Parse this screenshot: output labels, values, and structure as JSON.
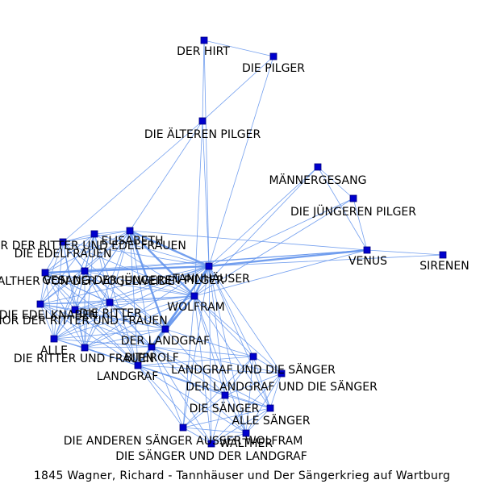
{
  "caption": "1845 Wagner, Richard - Tannhäuser und Der Sängerkrieg auf Wartburg",
  "colors": {
    "edge": "#6495ed",
    "node": "#0000cd",
    "label": "#000000"
  },
  "nodes": [
    {
      "id": "hirt",
      "label": "DER HIRT"
    },
    {
      "id": "pilger",
      "label": "DIE PILGER"
    },
    {
      "id": "aelteren",
      "label": "DIE ÄLTEREN PILGER"
    },
    {
      "id": "maenner",
      "label": "MÄNNERGESANG"
    },
    {
      "id": "juengeren",
      "label": "DIE JÜNGEREN PILGER"
    },
    {
      "id": "venus",
      "label": "VENUS"
    },
    {
      "id": "sirenen",
      "label": "SIRENEN"
    },
    {
      "id": "chorrf",
      "label": "CHOR DER RITTER UND EDELFRAUEN"
    },
    {
      "id": "elisabeth",
      "label": "ELISABETH"
    },
    {
      "id": "edelfrauen",
      "label": "DIE EDELFRAUEN"
    },
    {
      "id": "walther_v",
      "label": "WALTHER VON DER VOGELWEIDE"
    },
    {
      "id": "gesang",
      "label": "GESANG DER JÜNGEREN PILGER"
    },
    {
      "id": "tannhaeuser",
      "label": "TANNHÄUSER"
    },
    {
      "id": "wolfram",
      "label": "WOLFRAM"
    },
    {
      "id": "edelknaben",
      "label": "DIE EDELKNABEN"
    },
    {
      "id": "ritter",
      "label": "DIE RITTER"
    },
    {
      "id": "chorrf2",
      "label": "CHOR DER RITTER UND FRAUEN"
    },
    {
      "id": "landgraf_d",
      "label": "DER LANDGRAF"
    },
    {
      "id": "alle",
      "label": "ALLE"
    },
    {
      "id": "ritterfrauen",
      "label": "DIE RITTER UND FRAUEN"
    },
    {
      "id": "biterolf",
      "label": "BITEROLF"
    },
    {
      "id": "landgraf",
      "label": "LANDGRAF"
    },
    {
      "id": "landgraf_saenger",
      "label": "LANDGRAF UND DIE SÄNGER"
    },
    {
      "id": "der_landgraf_saenger",
      "label": "DER LANDGRAF UND DIE SÄNGER"
    },
    {
      "id": "saenger",
      "label": "DIE SÄNGER"
    },
    {
      "id": "alle_saenger",
      "label": "ALLE SÄNGER"
    },
    {
      "id": "andere_saenger",
      "label": "DIE ANDEREN SÄNGER AUSSER WOLFRAM"
    },
    {
      "id": "walther",
      "label": "WALTHER"
    },
    {
      "id": "saenger_landgraf",
      "label": "DIE SÄNGER UND DER LANDGRAF"
    }
  ],
  "edges": [
    [
      "hirt",
      "pilger"
    ],
    [
      "hirt",
      "aelteren"
    ],
    [
      "hirt",
      "tannhaeuser"
    ],
    [
      "pilger",
      "aelteren"
    ],
    [
      "pilger",
      "tannhaeuser"
    ],
    [
      "aelteren",
      "tannhaeuser"
    ],
    [
      "aelteren",
      "wolfram"
    ],
    [
      "aelteren",
      "elisabeth"
    ],
    [
      "aelteren",
      "chorrf"
    ],
    [
      "maenner",
      "juengeren"
    ],
    [
      "maenner",
      "venus"
    ],
    [
      "maenner",
      "tannhaeuser"
    ],
    [
      "maenner",
      "wolfram"
    ],
    [
      "juengeren",
      "venus"
    ],
    [
      "juengeren",
      "tannhaeuser"
    ],
    [
      "juengeren",
      "wolfram"
    ],
    [
      "venus",
      "sirenen"
    ],
    [
      "venus",
      "tannhaeuser"
    ],
    [
      "venus",
      "wolfram"
    ],
    [
      "venus",
      "gesang"
    ],
    [
      "venus",
      "elisabeth"
    ],
    [
      "venus",
      "walther_v"
    ],
    [
      "sirenen",
      "tannhaeuser"
    ],
    [
      "tannhaeuser",
      "wolfram"
    ],
    [
      "tannhaeuser",
      "elisabeth"
    ],
    [
      "tannhaeuser",
      "chorrf"
    ],
    [
      "tannhaeuser",
      "edelfrauen"
    ],
    [
      "tannhaeuser",
      "walther_v"
    ],
    [
      "tannhaeuser",
      "gesang"
    ],
    [
      "tannhaeuser",
      "edelknaben"
    ],
    [
      "tannhaeuser",
      "ritter"
    ],
    [
      "tannhaeuser",
      "chorrf2"
    ],
    [
      "tannhaeuser",
      "landgraf_d"
    ],
    [
      "tannhaeuser",
      "alle"
    ],
    [
      "tannhaeuser",
      "ritterfrauen"
    ],
    [
      "tannhaeuser",
      "biterolf"
    ],
    [
      "tannhaeuser",
      "landgraf"
    ],
    [
      "tannhaeuser",
      "landgraf_saenger"
    ],
    [
      "tannhaeuser",
      "der_landgraf_saenger"
    ],
    [
      "tannhaeuser",
      "saenger"
    ],
    [
      "tannhaeuser",
      "alle_saenger"
    ],
    [
      "tannhaeuser",
      "andere_saenger"
    ],
    [
      "tannhaeuser",
      "walther"
    ],
    [
      "tannhaeuser",
      "saenger_landgraf"
    ],
    [
      "wolfram",
      "elisabeth"
    ],
    [
      "wolfram",
      "chorrf"
    ],
    [
      "wolfram",
      "edelfrauen"
    ],
    [
      "wolfram",
      "walther_v"
    ],
    [
      "wolfram",
      "gesang"
    ],
    [
      "wolfram",
      "edelknaben"
    ],
    [
      "wolfram",
      "ritter"
    ],
    [
      "wolfram",
      "chorrf2"
    ],
    [
      "wolfram",
      "landgraf_d"
    ],
    [
      "wolfram",
      "alle"
    ],
    [
      "wolfram",
      "ritterfrauen"
    ],
    [
      "wolfram",
      "biterolf"
    ],
    [
      "wolfram",
      "landgraf"
    ],
    [
      "wolfram",
      "landgraf_saenger"
    ],
    [
      "wolfram",
      "der_landgraf_saenger"
    ],
    [
      "wolfram",
      "saenger"
    ],
    [
      "wolfram",
      "alle_saenger"
    ],
    [
      "wolfram",
      "andere_saenger"
    ],
    [
      "wolfram",
      "walther"
    ],
    [
      "wolfram",
      "saenger_landgraf"
    ],
    [
      "elisabeth",
      "chorrf"
    ],
    [
      "elisabeth",
      "edelfrauen"
    ],
    [
      "elisabeth",
      "walther_v"
    ],
    [
      "elisabeth",
      "gesang"
    ],
    [
      "elisabeth",
      "edelknaben"
    ],
    [
      "elisabeth",
      "ritter"
    ],
    [
      "elisabeth",
      "chorrf2"
    ],
    [
      "elisabeth",
      "landgraf_d"
    ],
    [
      "elisabeth",
      "alle"
    ],
    [
      "elisabeth",
      "ritterfrauen"
    ],
    [
      "elisabeth",
      "biterolf"
    ],
    [
      "elisabeth",
      "landgraf"
    ],
    [
      "chorrf",
      "edelfrauen"
    ],
    [
      "chorrf",
      "walther_v"
    ],
    [
      "chorrf",
      "gesang"
    ],
    [
      "chorrf",
      "edelknaben"
    ],
    [
      "chorrf",
      "ritter"
    ],
    [
      "chorrf",
      "chorrf2"
    ],
    [
      "chorrf",
      "landgraf_d"
    ],
    [
      "chorrf",
      "alle"
    ],
    [
      "chorrf",
      "ritterfrauen"
    ],
    [
      "edelfrauen",
      "walther_v"
    ],
    [
      "edelfrauen",
      "gesang"
    ],
    [
      "edelfrauen",
      "edelknaben"
    ],
    [
      "edelfrauen",
      "ritter"
    ],
    [
      "edelfrauen",
      "chorrf2"
    ],
    [
      "edelfrauen",
      "alle"
    ],
    [
      "edelfrauen",
      "ritterfrauen"
    ],
    [
      "edelfrauen",
      "landgraf"
    ],
    [
      "walther_v",
      "gesang"
    ],
    [
      "walther_v",
      "edelknaben"
    ],
    [
      "walther_v",
      "ritter"
    ],
    [
      "walther_v",
      "chorrf2"
    ],
    [
      "walther_v",
      "landgraf_d"
    ],
    [
      "walther_v",
      "alle"
    ],
    [
      "walther_v",
      "ritterfrauen"
    ],
    [
      "walther_v",
      "biterolf"
    ],
    [
      "walther_v",
      "landgraf"
    ],
    [
      "gesang",
      "edelknaben"
    ],
    [
      "gesang",
      "ritter"
    ],
    [
      "gesang",
      "chorrf2"
    ],
    [
      "gesang",
      "landgraf_d"
    ],
    [
      "gesang",
      "alle"
    ],
    [
      "gesang",
      "ritterfrauen"
    ],
    [
      "gesang",
      "biterolf"
    ],
    [
      "gesang",
      "landgraf"
    ],
    [
      "edelknaben",
      "ritter"
    ],
    [
      "edelknaben",
      "chorrf2"
    ],
    [
      "edelknaben",
      "landgraf_d"
    ],
    [
      "edelknaben",
      "alle"
    ],
    [
      "edelknaben",
      "ritterfrauen"
    ],
    [
      "edelknaben",
      "biterolf"
    ],
    [
      "edelknaben",
      "landgraf"
    ],
    [
      "ritter",
      "chorrf2"
    ],
    [
      "ritter",
      "landgraf_d"
    ],
    [
      "ritter",
      "alle"
    ],
    [
      "ritter",
      "ritterfrauen"
    ],
    [
      "ritter",
      "biterolf"
    ],
    [
      "ritter",
      "landgraf"
    ],
    [
      "chorrf2",
      "landgraf_d"
    ],
    [
      "chorrf2",
      "alle"
    ],
    [
      "chorrf2",
      "ritterfrauen"
    ],
    [
      "chorrf2",
      "biterolf"
    ],
    [
      "chorrf2",
      "landgraf"
    ],
    [
      "landgraf_d",
      "alle"
    ],
    [
      "landgraf_d",
      "ritterfrauen"
    ],
    [
      "landgraf_d",
      "biterolf"
    ],
    [
      "landgraf_d",
      "landgraf"
    ],
    [
      "landgraf_d",
      "landgraf_saenger"
    ],
    [
      "landgraf_d",
      "saenger"
    ],
    [
      "alle",
      "ritterfrauen"
    ],
    [
      "alle",
      "biterolf"
    ],
    [
      "alle",
      "landgraf"
    ],
    [
      "ritterfrauen",
      "biterolf"
    ],
    [
      "ritterfrauen",
      "landgraf"
    ],
    [
      "ritterfrauen",
      "saenger"
    ],
    [
      "biterolf",
      "landgraf"
    ],
    [
      "biterolf",
      "landgraf_saenger"
    ],
    [
      "biterolf",
      "der_landgraf_saenger"
    ],
    [
      "biterolf",
      "saenger"
    ],
    [
      "biterolf",
      "alle_saenger"
    ],
    [
      "biterolf",
      "andere_saenger"
    ],
    [
      "biterolf",
      "walther"
    ],
    [
      "biterolf",
      "saenger_landgraf"
    ],
    [
      "landgraf",
      "landgraf_saenger"
    ],
    [
      "landgraf",
      "der_landgraf_saenger"
    ],
    [
      "landgraf",
      "saenger"
    ],
    [
      "landgraf",
      "alle_saenger"
    ],
    [
      "landgraf",
      "andere_saenger"
    ],
    [
      "landgraf",
      "walther"
    ],
    [
      "landgraf",
      "saenger_landgraf"
    ],
    [
      "landgraf_saenger",
      "der_landgraf_saenger"
    ],
    [
      "landgraf_saenger",
      "saenger"
    ],
    [
      "landgraf_saenger",
      "alle_saenger"
    ],
    [
      "landgraf_saenger",
      "walther"
    ],
    [
      "landgraf_saenger",
      "andere_saenger"
    ],
    [
      "der_landgraf_saenger",
      "saenger"
    ],
    [
      "der_landgraf_saenger",
      "alle_saenger"
    ],
    [
      "der_landgraf_saenger",
      "walther"
    ],
    [
      "der_landgraf_saenger",
      "saenger_landgraf"
    ],
    [
      "saenger",
      "alle_saenger"
    ],
    [
      "saenger",
      "andere_saenger"
    ],
    [
      "saenger",
      "walther"
    ],
    [
      "saenger",
      "saenger_landgraf"
    ],
    [
      "alle_saenger",
      "andere_saenger"
    ],
    [
      "alle_saenger",
      "walther"
    ],
    [
      "alle_saenger",
      "saenger_landgraf"
    ],
    [
      "andere_saenger",
      "walther"
    ],
    [
      "andere_saenger",
      "saenger_landgraf"
    ],
    [
      "walther",
      "saenger_landgraf"
    ]
  ],
  "strong_edges": [
    [
      "tannhaeuser",
      "wolfram"
    ],
    [
      "tannhaeuser",
      "elisabeth"
    ],
    [
      "tannhaeuser",
      "venus"
    ],
    [
      "wolfram",
      "landgraf_d"
    ],
    [
      "wolfram",
      "elisabeth"
    ],
    [
      "tannhaeuser",
      "walther_v"
    ],
    [
      "elisabeth",
      "landgraf_d"
    ],
    [
      "tannhaeuser",
      "landgraf"
    ]
  ]
}
